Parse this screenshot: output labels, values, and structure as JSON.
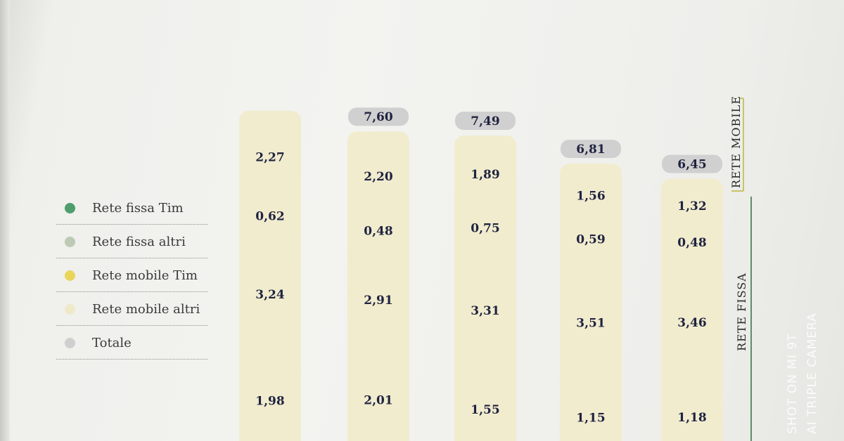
{
  "chart_data": {
    "type": "bar",
    "stacked": true,
    "series": [
      {
        "name": "Rete fissa Tim",
        "color": "#5fa67a",
        "values": [
          "1,98",
          "2,01",
          "1,55",
          "1,15",
          "1,18"
        ]
      },
      {
        "name": "Rete fissa altri",
        "color": "#c8d3c3",
        "values": [
          "3,24",
          "2,91",
          "3,31",
          "3,51",
          "3,46"
        ]
      },
      {
        "name": "Rete mobile Tim",
        "color": "#ecdc6a",
        "values": [
          "0,62",
          "0,48",
          "0,75",
          "0,59",
          "0,48"
        ]
      },
      {
        "name": "Rete mobile altri",
        "color": "#f1ecce",
        "values": [
          "2,27",
          "2,20",
          "1,89",
          "1,56",
          "1,32"
        ]
      }
    ],
    "totals": [
      "",
      "7,60",
      "7,49",
      "6,81",
      "6,45"
    ],
    "total_series_name": "Totale",
    "total_color": "#d0d0d0",
    "group_labels": [
      "RETE MOBILE",
      "RETE FISSA"
    ],
    "legend_position": "left"
  },
  "watermark": {
    "line1": "SHOT ON MI 9T",
    "line2": "AI TRIPLE CAMERA"
  }
}
